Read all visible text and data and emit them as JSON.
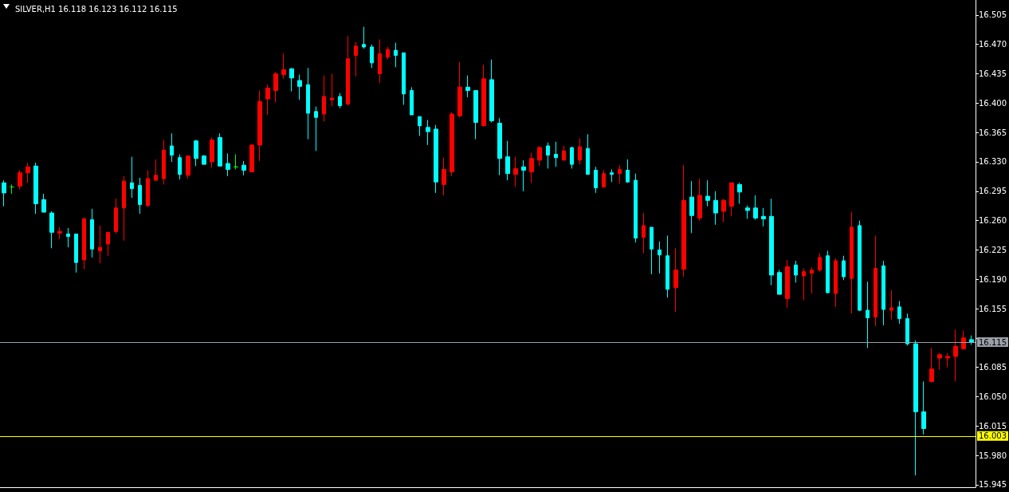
{
  "chart_data": {
    "type": "candlestick",
    "title": "SILVER,H1 16.118 16.123 16.112 16.115",
    "categories": [
      null,
      null,
      null,
      null,
      null,
      null,
      null,
      null,
      null,
      null,
      null,
      null,
      null,
      null,
      null,
      null,
      null,
      null,
      null,
      null,
      null,
      null,
      null,
      null,
      null,
      null,
      null,
      null,
      null,
      null,
      null,
      null,
      null,
      null,
      null,
      null,
      null,
      null,
      null,
      null,
      null,
      null,
      null,
      null,
      null,
      null,
      null,
      null,
      null,
      null,
      null,
      null,
      null,
      null,
      null,
      null,
      null,
      null,
      null,
      null,
      null,
      null,
      null,
      null,
      null,
      null,
      null,
      null,
      null,
      null,
      null,
      null,
      null,
      null,
      null,
      null,
      null,
      null,
      null,
      null,
      null,
      null,
      null,
      null,
      null,
      null,
      null,
      null,
      null,
      null,
      null,
      null,
      null,
      null,
      null,
      null,
      null,
      null,
      null,
      null,
      null,
      null,
      null,
      null,
      null,
      null,
      null,
      null,
      null,
      null,
      null,
      null,
      null,
      null,
      null,
      null,
      null,
      null,
      null,
      null,
      null,
      null
    ],
    "ohlc": [
      [
        16.305,
        16.308,
        16.277,
        16.293
      ],
      [
        16.3,
        16.303,
        16.292,
        16.3
      ],
      [
        16.301,
        16.32,
        16.297,
        16.317
      ],
      [
        16.317,
        16.329,
        16.305,
        16.324
      ],
      [
        16.325,
        16.329,
        16.268,
        16.28
      ],
      [
        16.285,
        16.292,
        16.27,
        16.27
      ],
      [
        16.269,
        16.271,
        16.227,
        16.246
      ],
      [
        16.245,
        16.252,
        16.238,
        16.247
      ],
      [
        16.244,
        16.251,
        16.228,
        16.241
      ],
      [
        16.244,
        16.244,
        16.198,
        16.21
      ],
      [
        16.213,
        16.264,
        16.202,
        16.262
      ],
      [
        16.261,
        16.274,
        16.216,
        16.226
      ],
      [
        16.224,
        16.254,
        16.209,
        16.228
      ],
      [
        16.232,
        16.246,
        16.218,
        16.246
      ],
      [
        16.247,
        16.286,
        16.244,
        16.275
      ],
      [
        16.275,
        16.313,
        16.236,
        16.307
      ],
      [
        16.305,
        16.336,
        16.287,
        16.298
      ],
      [
        16.302,
        16.311,
        16.268,
        16.279
      ],
      [
        16.278,
        16.32,
        16.276,
        16.31
      ],
      [
        16.308,
        16.333,
        16.308,
        16.314
      ],
      [
        16.31,
        16.356,
        16.303,
        16.344
      ],
      [
        16.349,
        16.364,
        16.33,
        16.338
      ],
      [
        16.335,
        16.339,
        16.309,
        16.315
      ],
      [
        16.314,
        16.337,
        16.31,
        16.337
      ],
      [
        16.355,
        16.356,
        16.325,
        16.334
      ],
      [
        16.337,
        16.338,
        16.327,
        16.327
      ],
      [
        16.33,
        16.359,
        16.323,
        16.356
      ],
      [
        16.359,
        16.364,
        16.325,
        16.325
      ],
      [
        16.328,
        16.34,
        16.313,
        16.321
      ],
      [
        16.324,
        16.339,
        16.321,
        16.324
      ],
      [
        16.326,
        16.331,
        16.314,
        16.32
      ],
      [
        16.318,
        16.351,
        16.318,
        16.35
      ],
      [
        16.35,
        16.415,
        16.331,
        16.402
      ],
      [
        16.405,
        16.422,
        16.386,
        16.418
      ],
      [
        16.415,
        16.437,
        16.401,
        16.435
      ],
      [
        16.434,
        16.459,
        16.429,
        16.44
      ],
      [
        16.441,
        16.442,
        16.414,
        16.43
      ],
      [
        16.427,
        16.434,
        16.404,
        16.42
      ],
      [
        16.422,
        16.442,
        16.357,
        16.388
      ],
      [
        16.39,
        16.396,
        16.343,
        16.383
      ],
      [
        16.387,
        16.433,
        16.378,
        16.408
      ],
      [
        16.404,
        16.435,
        16.396,
        16.406
      ],
      [
        16.408,
        16.412,
        16.394,
        16.397
      ],
      [
        16.399,
        16.48,
        16.397,
        16.453
      ],
      [
        16.457,
        16.473,
        16.432,
        16.468
      ],
      [
        16.47,
        16.491,
        16.465,
        16.467
      ],
      [
        16.467,
        16.47,
        16.442,
        16.448
      ],
      [
        16.435,
        16.476,
        16.424,
        16.459
      ],
      [
        16.455,
        16.467,
        16.452,
        16.464
      ],
      [
        16.463,
        16.472,
        16.443,
        16.457
      ],
      [
        16.46,
        16.46,
        16.398,
        16.411
      ],
      [
        16.415,
        16.419,
        16.386,
        16.386
      ],
      [
        16.384,
        16.384,
        16.361,
        16.373
      ],
      [
        16.371,
        16.38,
        16.35,
        16.366
      ],
      [
        16.369,
        16.374,
        16.293,
        16.306
      ],
      [
        16.303,
        16.335,
        16.29,
        16.321
      ],
      [
        16.318,
        16.389,
        16.313,
        16.387
      ],
      [
        16.385,
        16.449,
        16.383,
        16.419
      ],
      [
        16.419,
        16.433,
        16.407,
        16.415
      ],
      [
        16.415,
        16.415,
        16.357,
        16.377
      ],
      [
        16.373,
        16.446,
        16.373,
        16.429
      ],
      [
        16.428,
        16.452,
        16.377,
        16.379
      ],
      [
        16.376,
        16.382,
        16.314,
        16.334
      ],
      [
        16.336,
        16.355,
        16.308,
        16.316
      ],
      [
        16.315,
        16.336,
        16.3,
        16.322
      ],
      [
        16.324,
        16.332,
        16.295,
        16.32
      ],
      [
        16.318,
        16.341,
        16.305,
        16.334
      ],
      [
        16.332,
        16.349,
        16.325,
        16.347
      ],
      [
        16.349,
        16.353,
        16.322,
        16.338
      ],
      [
        16.339,
        16.354,
        16.324,
        16.335
      ],
      [
        16.332,
        16.349,
        16.332,
        16.343
      ],
      [
        16.347,
        16.348,
        16.322,
        16.327
      ],
      [
        16.332,
        16.358,
        16.327,
        16.348
      ],
      [
        16.346,
        16.363,
        16.315,
        16.315
      ],
      [
        16.32,
        16.324,
        16.293,
        16.299
      ],
      [
        16.3,
        16.32,
        16.3,
        16.316
      ],
      [
        16.317,
        16.321,
        16.306,
        16.315
      ],
      [
        16.316,
        16.326,
        16.304,
        16.321
      ],
      [
        16.32,
        16.333,
        16.305,
        16.306
      ],
      [
        16.308,
        16.316,
        16.234,
        16.239
      ],
      [
        16.24,
        16.269,
        16.221,
        16.254
      ],
      [
        16.252,
        16.252,
        16.196,
        16.226
      ],
      [
        16.225,
        16.235,
        16.197,
        16.219
      ],
      [
        16.218,
        16.242,
        16.168,
        16.178
      ],
      [
        16.18,
        16.227,
        16.151,
        16.201
      ],
      [
        16.202,
        16.326,
        16.193,
        16.284
      ],
      [
        16.288,
        16.307,
        16.245,
        16.266
      ],
      [
        16.263,
        16.31,
        16.26,
        16.29
      ],
      [
        16.289,
        16.308,
        16.277,
        16.284
      ],
      [
        16.284,
        16.295,
        16.255,
        16.269
      ],
      [
        16.271,
        16.286,
        16.258,
        16.284
      ],
      [
        16.277,
        16.305,
        16.265,
        16.305
      ],
      [
        16.303,
        16.305,
        16.28,
        16.294
      ],
      [
        16.275,
        16.278,
        16.262,
        16.272
      ],
      [
        16.275,
        16.29,
        16.261,
        16.263
      ],
      [
        16.265,
        16.275,
        16.253,
        16.262
      ],
      [
        16.265,
        16.286,
        16.183,
        16.195
      ],
      [
        16.198,
        16.201,
        16.172,
        16.172
      ],
      [
        16.167,
        16.213,
        16.156,
        16.205
      ],
      [
        16.207,
        16.212,
        16.186,
        16.195
      ],
      [
        16.194,
        16.203,
        16.165,
        16.199
      ],
      [
        16.197,
        16.204,
        16.173,
        16.201
      ],
      [
        16.201,
        16.221,
        16.199,
        16.216
      ],
      [
        16.218,
        16.224,
        16.173,
        16.174
      ],
      [
        16.173,
        16.215,
        16.157,
        16.212
      ],
      [
        16.212,
        16.218,
        16.189,
        16.193
      ],
      [
        16.191,
        16.27,
        16.149,
        16.252
      ],
      [
        16.254,
        16.26,
        16.152,
        16.153
      ],
      [
        16.153,
        16.187,
        16.108,
        16.144
      ],
      [
        16.145,
        16.242,
        16.134,
        16.203
      ],
      [
        16.206,
        16.212,
        16.135,
        16.154
      ],
      [
        16.153,
        16.177,
        16.142,
        16.156
      ],
      [
        16.157,
        16.164,
        16.137,
        16.143
      ],
      [
        16.143,
        16.149,
        16.111,
        16.113
      ],
      [
        16.113,
        16.117,
        15.956,
        16.032
      ],
      [
        16.032,
        16.068,
        16.005,
        16.012
      ],
      [
        16.068,
        16.108,
        16.067,
        16.083
      ],
      [
        16.096,
        16.102,
        16.082,
        16.1
      ],
      [
        16.096,
        16.102,
        16.085,
        16.098
      ],
      [
        16.098,
        16.13,
        16.068,
        16.11
      ],
      [
        16.107,
        16.129,
        16.107,
        16.12
      ],
      [
        16.118,
        16.123,
        16.112,
        16.115
      ]
    ],
    "colors": [
      "#00ffff",
      "#00ff00",
      "#ff0000",
      "#ff0000",
      "#00ffff",
      "#00ffff",
      "#00ffff",
      "#ff0000",
      "#00ffff",
      "#00ffff",
      "#ff0000",
      "#00ffff",
      "#ff0000",
      "#ff0000",
      "#ff0000",
      "#ff0000",
      "#00ffff",
      "#00ffff",
      "#ff0000",
      "#ff0000",
      "#ff0000",
      "#00ffff",
      "#00ffff",
      "#ff0000",
      "#00ffff",
      "#00ffff",
      "#ff0000",
      "#00ffff",
      "#00ffff",
      "#00ff00",
      "#00ffff",
      "#ff0000",
      "#ff0000",
      "#ff0000",
      "#ff0000",
      "#ff0000",
      "#00ffff",
      "#00ffff",
      "#00ffff",
      "#00ffff",
      "#ff0000",
      "#ff0000",
      "#00ffff",
      "#ff0000",
      "#ff0000",
      "#00ffff",
      "#00ffff",
      "#ff0000",
      "#ff0000",
      "#00ffff",
      "#00ffff",
      "#00ffff",
      "#00ffff",
      "#00ffff",
      "#00ffff",
      "#ff0000",
      "#ff0000",
      "#ff0000",
      "#00ffff",
      "#00ffff",
      "#ff0000",
      "#00ffff",
      "#00ffff",
      "#00ffff",
      "#ff0000",
      "#00ffff",
      "#ff0000",
      "#ff0000",
      "#00ffff",
      "#00ffff",
      "#ff0000",
      "#00ffff",
      "#ff0000",
      "#00ffff",
      "#00ffff",
      "#ff0000",
      "#00ffff",
      "#ff0000",
      "#00ffff",
      "#00ffff",
      "#ff0000",
      "#00ffff",
      "#00ffff",
      "#00ffff",
      "#ff0000",
      "#ff0000",
      "#00ffff",
      "#ff0000",
      "#00ffff",
      "#00ffff",
      "#ff0000",
      "#ff0000",
      "#00ffff",
      "#00ffff",
      "#00ffff",
      "#00ffff",
      "#00ffff",
      "#00ffff",
      "#ff0000",
      "#00ffff",
      "#ff0000",
      "#ff0000",
      "#ff0000",
      "#00ffff",
      "#ff0000",
      "#00ffff",
      "#ff0000",
      "#00ffff",
      "#00ffff",
      "#ff0000",
      "#00ffff",
      "#ff0000",
      "#00ffff",
      "#00ffff",
      "#00ffff",
      "#00ffff",
      "#ff0000",
      "#ff0000",
      "#ff0000",
      "#ff0000",
      "#ff0000",
      "#00ffff"
    ],
    "ylim": [
      15.942,
      16.523
    ],
    "yticks": [
      16.505,
      {
        "value": 16.47,
        "label": "16.470"
      },
      16.435,
      {
        "value": 16.4,
        "label": "16.400"
      },
      16.365,
      {
        "value": 16.33,
        "label": "16.330"
      },
      16.295,
      {
        "value": 16.26,
        "label": "16.260"
      },
      16.225,
      {
        "value": 16.19,
        "label": "16.190"
      },
      16.155,
      {
        "value": 16.12,
        "label": null
      },
      16.085,
      {
        "value": 16.05,
        "label": "16.050"
      },
      16.015,
      {
        "value": 15.98,
        "label": "15.980"
      },
      15.945
    ],
    "ref_lines": [
      {
        "axis": "y",
        "value": 16.115,
        "label": "16.115",
        "color": "#9aa0a8"
      },
      {
        "axis": "y",
        "value": 16.003,
        "label": "16.003",
        "color": "#ffff00"
      }
    ],
    "tick_labels": "y"
  }
}
